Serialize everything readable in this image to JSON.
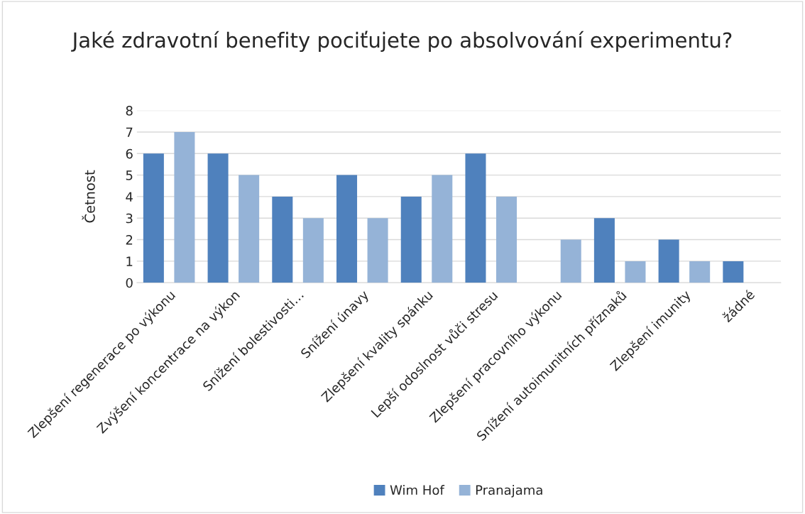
{
  "chart_data": {
    "type": "bar",
    "title": "Jaké zdravotní benefity pociťujete po absolvování experimentu?",
    "ylabel": "Četnost",
    "categories": [
      "Zlepšení regenerace po výkonu",
      "Zvýšení koncentrace na výkon",
      "Snížení bolestivosti…",
      "Snížení únavy",
      "Zlepšení kvality spánku",
      "Lepší odoslnost vůči stresu",
      "Zlepšení pracovního výkonu",
      "Snížení autoimunitních příznaků",
      "Zlepšení imunity",
      "žádné"
    ],
    "series": [
      {
        "name": "Wim Hof",
        "color": "#4f81bd",
        "values": [
          6,
          6,
          4,
          5,
          4,
          6,
          0,
          3,
          2,
          1
        ]
      },
      {
        "name": "Pranajama",
        "color": "#95b3d7",
        "values": [
          7,
          5,
          3,
          3,
          5,
          4,
          2,
          1,
          1,
          0
        ]
      }
    ],
    "ylim": [
      0,
      8
    ],
    "yticks": [
      0,
      1,
      2,
      3,
      4,
      5,
      6,
      7,
      8
    ],
    "grid": "y",
    "legend": "bottom"
  }
}
